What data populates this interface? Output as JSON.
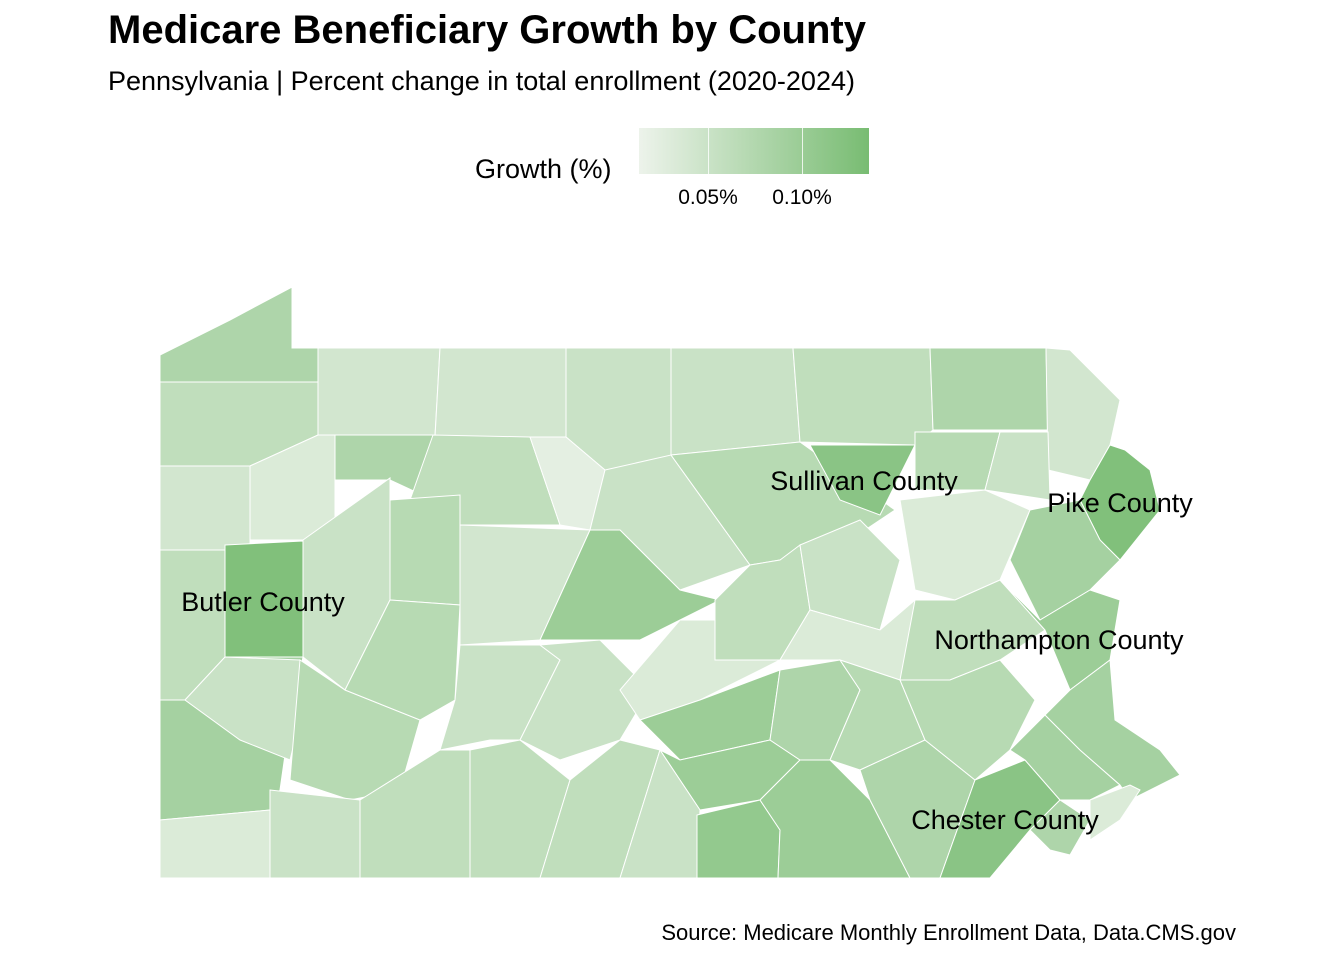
{
  "title": "Medicare Beneficiary Growth by County",
  "subtitle": "Pennsylvania | Percent change in total enrollment (2020-2024)",
  "source": "Source: Medicare Monthly Enrollment Data, Data.CMS.gov",
  "chart_data": {
    "type": "choropleth",
    "legend": {
      "title": "Growth (%)",
      "ticks": [
        {
          "value": 0.05,
          "label": "0.05%"
        },
        {
          "value": 0.1,
          "label": "0.10%"
        }
      ],
      "range": [
        0.0,
        0.13
      ],
      "color_low": "#edf3eb",
      "color_high": "#78bc72"
    },
    "labeled_counties": [
      {
        "name": "Sullivan County",
        "growth": 0.11
      },
      {
        "name": "Pike County",
        "growth": 0.12
      },
      {
        "name": "Butler County",
        "growth": 0.12
      },
      {
        "name": "Northampton County",
        "growth": 0.09
      },
      {
        "name": "Chester County",
        "growth": 0.11
      }
    ],
    "county_growth": [
      0.07,
      0.05,
      0.03,
      0.03,
      0.04,
      0.04,
      0.05,
      0.07,
      0.03,
      0.03,
      0.02,
      0.07,
      0.05,
      0.01,
      0.04,
      0.06,
      0.11,
      0.06,
      0.04,
      0.02,
      0.12,
      0.08,
      0.05,
      0.12,
      0.04,
      0.06,
      0.03,
      0.09,
      0.05,
      0.04,
      0.02,
      0.05,
      0.09,
      0.08,
      0.04,
      0.06,
      0.06,
      0.02,
      0.04,
      0.05,
      0.04,
      0.05,
      0.04,
      0.05,
      0.02,
      0.09,
      0.09,
      0.04,
      0.1,
      0.09,
      0.07,
      0.06,
      0.07,
      0.06,
      0.11,
      0.08,
      0.08,
      0.07,
      0.02
    ]
  }
}
